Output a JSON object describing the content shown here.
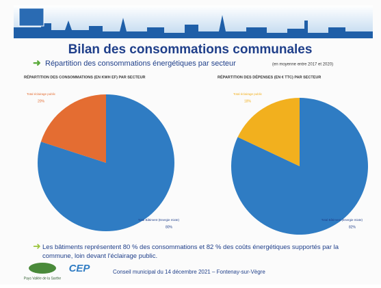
{
  "slide": {
    "title": "Bilan des consommations communales",
    "subtitle": "Répartition des consommations énergétiques par secteur",
    "subtitle_note": "(en moyenne entre 2017 et 2020)",
    "bullet": "Les bâtiments représentent 80 % des consommations et 82 % des coûts énergétiques supportés par la commune, loin devant l'éclairage public.",
    "footer": "Conseil municipal du 14 décembre 2021 – Fontenay-sur-Vègre",
    "logo_left": "Pays Vallée de la Sarthe",
    "logo_right": "CEP"
  },
  "chart_data": [
    {
      "type": "pie",
      "title": "RÉPARTITION DES CONSOMMATIONS (EN KWH EF) PAR SECTEUR",
      "categories": [
        "Total Bâtiment (Energie mixte)",
        "Total éclairage public"
      ],
      "values": [
        80,
        20
      ],
      "value_labels": [
        "80%",
        "20%"
      ],
      "colors": [
        "#2f7cc3",
        "#e46d32"
      ]
    },
    {
      "type": "pie",
      "title": "RÉPARTITION DES DÉPENSES (EN € TTC) PAR SECTEUR",
      "categories": [
        "Total Bâtiment (Energie mixte)",
        "Total éclairage public"
      ],
      "values": [
        82,
        18
      ],
      "value_labels": [
        "82%",
        "18%"
      ],
      "colors": [
        "#2f7cc3",
        "#f2b01e"
      ]
    }
  ]
}
